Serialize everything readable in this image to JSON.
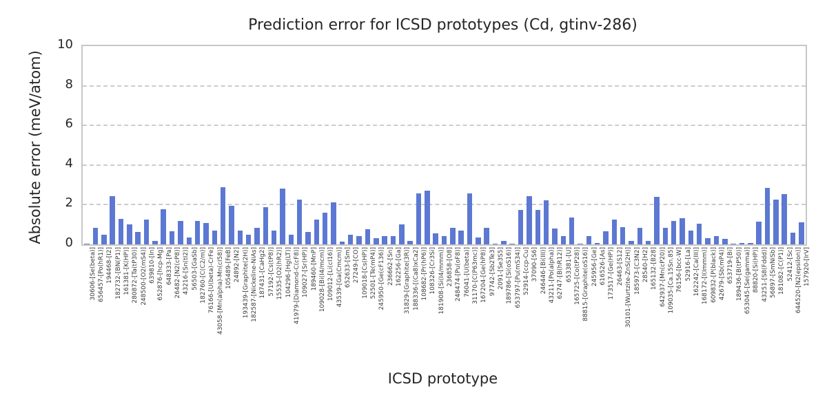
{
  "figure": {
    "title": "Prediction error for ICSD prototypes (Cd, gtinv-286)",
    "xlabel": "ICSD prototype",
    "ylabel": "Absolute error (meV/atom)"
  },
  "style": {
    "bar_color": "#5c78d2",
    "grid_color": "#cccccc",
    "spine_color": "#c6c6c6",
    "text_color": "#262626",
    "background": "#ffffff"
  },
  "chart_data": {
    "type": "bar",
    "title": "Prediction error for ICSD prototypes (Cd, gtinv-286)",
    "xlabel": "ICSD prototype",
    "ylabel": "Absolute error (meV/atom)",
    "ylim": [
      0,
      10
    ],
    "yticks": [
      0,
      2,
      4,
      6,
      8,
      10
    ],
    "grid": "horizontal dashed at y=2,4,6,8",
    "legend": "none",
    "categories": [
      "30606-[Se(beta)]",
      "656457-[Po(hR1)]",
      "194468-[I2]",
      "182732-[BN(P1)]",
      "161381-[K(HP)]",
      "280872-[Ta(tP30)]",
      "248500-[O2(mS4)]",
      "639810-[In]",
      "652876-[hcp-Mg]",
      "648333-[Pa]",
      "26482-[N2(cP8)]",
      "43216-[Sn(tI2)]",
      "56503-[GaSb]",
      "182760-[C(C2/m)]",
      "76166-[U(beta)-CrFe]",
      "43058-[Mn(alpha)-Mn(cI58)]",
      "105489-[FeB]",
      "24892-[N2]",
      "193439-[Graphite(2H)]",
      "182587-[Nickeline-NiAs]",
      "187431-[CaHg2]",
      "57192-[Cs(tP8)]",
      "15535-[O2(hR2)]",
      "104296-[Hg(LT)]",
      "41979-[Diamond-C(cF8)]",
      "109027-[Sr(HP)]",
      "189460-[MnP]",
      "109028-[Bi(I4/mcm)]",
      "109012-[Li(cI16)]",
      "43539-[Ga(Cmcm)]",
      "652633-[Sm]",
      "27249-[CO]",
      "109018-[Cs(HP)]",
      "52501-[Te(mP4)]",
      "245950-[Ge(cF136)]",
      "236662-[Sn]",
      "162256-[Ga]",
      "31829-[Graphite(3R)]",
      "188336-[(Ca8)xCa2]",
      "108682-[Pr(hP6)]",
      "108326-[Cr3Si]",
      "181908-[Si(I4/mmm)]",
      "236858-[O8]",
      "248474-[Pu(oF8)]",
      "76041-[U(beta)]",
      "31170-[C(P63mc)]",
      "167204-[Ge(hP8)]",
      "97742-[Sb2Te3]",
      "2091-[Se3S5]",
      "189786-[Si(oS16)]",
      "653797-[Pu(mS34)]",
      "52914-[ccp-Cu]",
      "37090-[S6]",
      "246446-[Bi(III)]",
      "43211-[Po(alpha)]",
      "62747-[B(hR12)]",
      "653381-[U]",
      "165725-[Co(tP28)]",
      "88815-[Graphite(oS16)]",
      "245956-[Ge]",
      "616526-[As]",
      "173517-[Ge(HP)]",
      "26463-[S12]",
      "30101-[Wurtzite-ZnS(2H)]",
      "185973-[C3N2]",
      "28540-[H2]",
      "165132-[B28]",
      "642937-[Mn(cP20)]",
      "109035-[Ca.15Sn.85]",
      "76156-[bcc-W]",
      "52916-[La]",
      "162242-[Ca(III)]",
      "168172-[I(Immm)]",
      "609832-[P(black)]",
      "42679-[Sb(mP4)]",
      "653719-[Bi]",
      "189436-[B(tP50)]",
      "653045-[Se(gamma)]",
      "88820-[Si(HP)]",
      "43251-[S8(Fddd)]",
      "56897-[SmNiSb]",
      "181082-[C(P1)]",
      "52412-[Sc]",
      "644520-[N2(epsilon)]",
      "157920-[IrV]"
    ],
    "values": [
      0.02,
      0.83,
      0.48,
      2.44,
      1.3,
      1.0,
      0.63,
      1.25,
      0.16,
      1.77,
      0.67,
      1.18,
      0.34,
      1.18,
      1.09,
      0.71,
      2.88,
      1.95,
      0.71,
      0.48,
      0.82,
      1.88,
      0.69,
      2.82,
      0.5,
      2.26,
      0.64,
      1.25,
      1.6,
      2.12,
      0.15,
      0.48,
      0.4,
      0.78,
      0.32,
      0.4,
      0.42,
      1.02,
      0.19,
      2.56,
      2.7,
      0.57,
      0.42,
      0.83,
      0.68,
      2.56,
      0.36,
      0.83,
      0.02,
      0.16,
      0.02,
      1.74,
      2.42,
      1.72,
      2.23,
      0.81,
      0.4,
      1.37,
      0.02,
      0.43,
      0.06,
      0.67,
      1.25,
      0.87,
      0.16,
      0.83,
      0.16,
      2.38,
      0.83,
      1.19,
      1.33,
      0.68,
      1.05,
      0.3,
      0.4,
      0.28,
      0.02,
      0.07,
      0.08,
      1.16,
      2.84,
      2.25,
      2.55,
      0.6,
      1.12
    ]
  }
}
